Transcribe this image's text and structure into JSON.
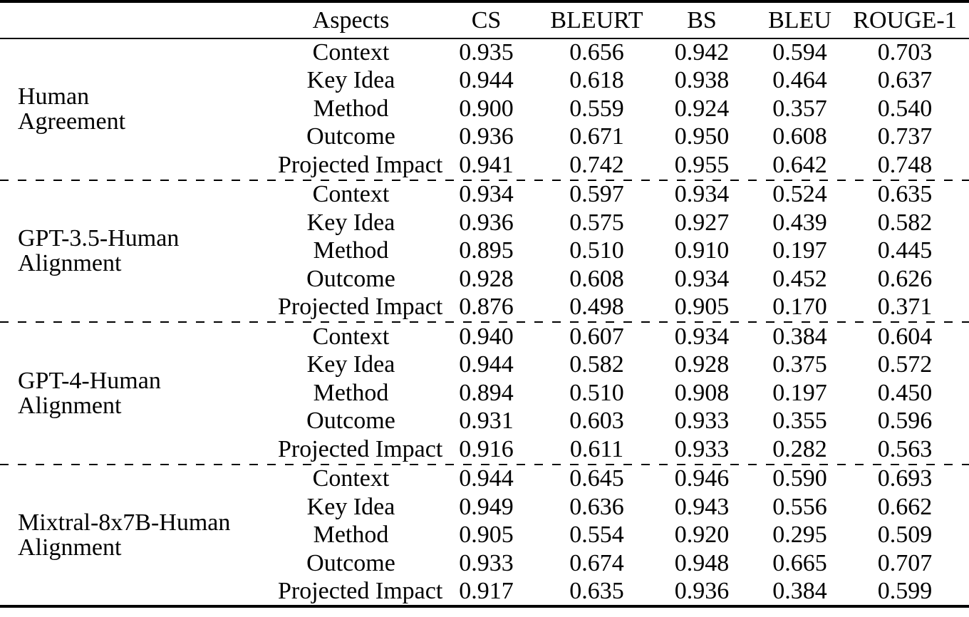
{
  "page": {
    "background": "#ffffff",
    "text_color": "#000000",
    "rule_color": "#000000"
  },
  "table": {
    "header": {
      "aspects": "Aspects",
      "metrics": [
        "CS",
        "BLEURT",
        "BS",
        "BLEU",
        "ROUGE-1"
      ]
    },
    "groups": [
      {
        "label": "Human\nAgreement",
        "rows": [
          {
            "aspect": "Context",
            "values": [
              "0.935",
              "0.656",
              "0.942",
              "0.594",
              "0.703"
            ]
          },
          {
            "aspect": "Key Idea",
            "values": [
              "0.944",
              "0.618",
              "0.938",
              "0.464",
              "0.637"
            ]
          },
          {
            "aspect": "Method",
            "values": [
              "0.900",
              "0.559",
              "0.924",
              "0.357",
              "0.540"
            ]
          },
          {
            "aspect": "Outcome",
            "values": [
              "0.936",
              "0.671",
              "0.950",
              "0.608",
              "0.737"
            ]
          },
          {
            "aspect": "Projected Impact",
            "values": [
              "0.941",
              "0.742",
              "0.955",
              "0.642",
              "0.748"
            ]
          }
        ]
      },
      {
        "label": "GPT-3.5-Human\nAlignment",
        "rows": [
          {
            "aspect": "Context",
            "values": [
              "0.934",
              "0.597",
              "0.934",
              "0.524",
              "0.635"
            ]
          },
          {
            "aspect": "Key Idea",
            "values": [
              "0.936",
              "0.575",
              "0.927",
              "0.439",
              "0.582"
            ]
          },
          {
            "aspect": "Method",
            "values": [
              "0.895",
              "0.510",
              "0.910",
              "0.197",
              "0.445"
            ]
          },
          {
            "aspect": "Outcome",
            "values": [
              "0.928",
              "0.608",
              "0.934",
              "0.452",
              "0.626"
            ]
          },
          {
            "aspect": "Projected Impact",
            "values": [
              "0.876",
              "0.498",
              "0.905",
              "0.170",
              "0.371"
            ]
          }
        ]
      },
      {
        "label": "GPT-4-Human\nAlignment",
        "rows": [
          {
            "aspect": "Context",
            "values": [
              "0.940",
              "0.607",
              "0.934",
              "0.384",
              "0.604"
            ]
          },
          {
            "aspect": "Key Idea",
            "values": [
              "0.944",
              "0.582",
              "0.928",
              "0.375",
              "0.572"
            ]
          },
          {
            "aspect": "Method",
            "values": [
              "0.894",
              "0.510",
              "0.908",
              "0.197",
              "0.450"
            ]
          },
          {
            "aspect": "Outcome",
            "values": [
              "0.931",
              "0.603",
              "0.933",
              "0.355",
              "0.596"
            ]
          },
          {
            "aspect": "Projected Impact",
            "values": [
              "0.916",
              "0.611",
              "0.933",
              "0.282",
              "0.563"
            ]
          }
        ]
      },
      {
        "label": "Mixtral-8x7B-Human\nAlignment",
        "rows": [
          {
            "aspect": "Context",
            "values": [
              "0.944",
              "0.645",
              "0.946",
              "0.590",
              "0.693"
            ]
          },
          {
            "aspect": "Key Idea",
            "values": [
              "0.949",
              "0.636",
              "0.943",
              "0.556",
              "0.662"
            ]
          },
          {
            "aspect": "Method",
            "values": [
              "0.905",
              "0.554",
              "0.920",
              "0.295",
              "0.509"
            ]
          },
          {
            "aspect": "Outcome",
            "values": [
              "0.933",
              "0.674",
              "0.948",
              "0.665",
              "0.707"
            ]
          },
          {
            "aspect": "Projected Impact",
            "values": [
              "0.917",
              "0.635",
              "0.936",
              "0.384",
              "0.599"
            ]
          }
        ]
      }
    ]
  }
}
